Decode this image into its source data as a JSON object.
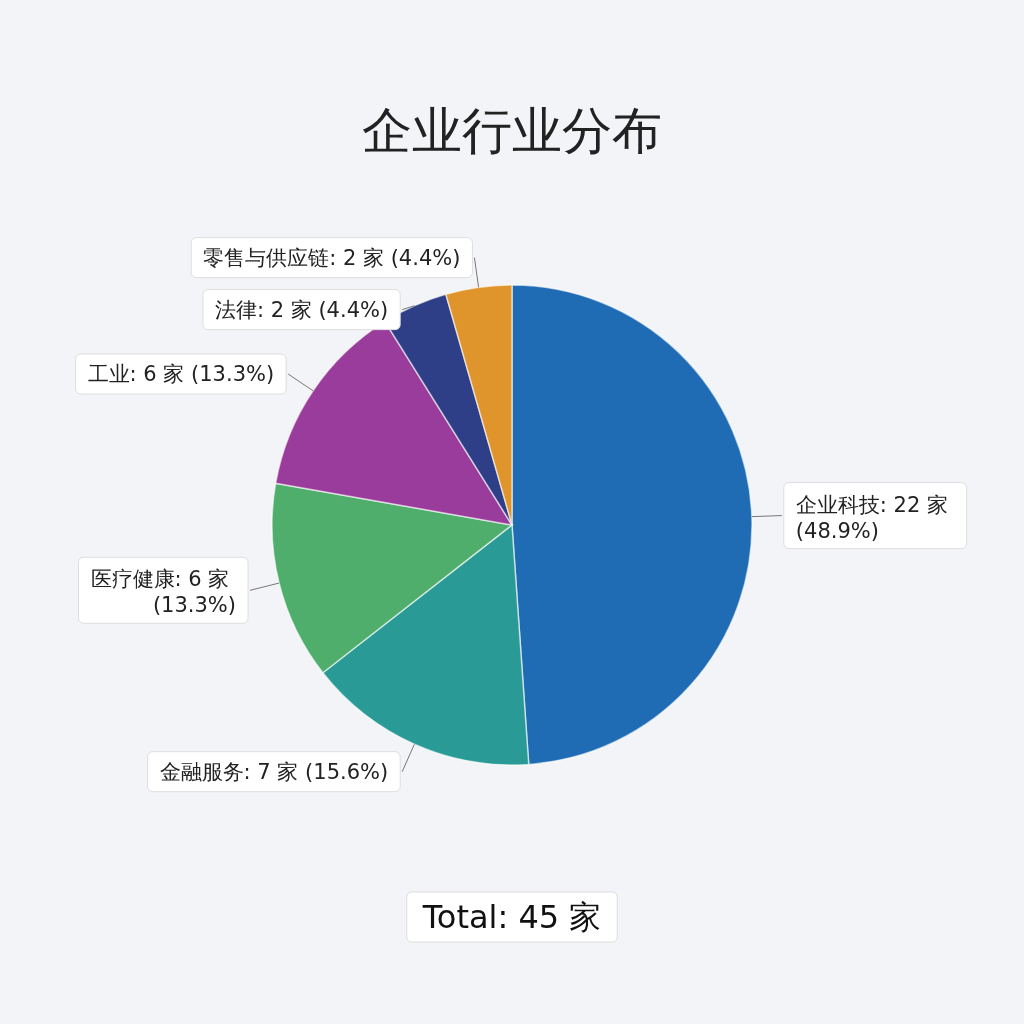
{
  "chart_data": {
    "type": "pie",
    "title": "企业行业分布",
    "categories": [
      "企业科技: 22 家 (48.9%)",
      "金融服务: 7 家 (15.6%)",
      "医疗健康: 6 家 (13.3%)",
      "工业: 6 家 (13.3%)",
      "法律: 2 家 (4.4%)",
      "零售与供应链: 2 家 (4.4%)"
    ],
    "values": [
      22,
      7,
      6,
      6,
      2,
      2
    ],
    "colors": [
      "#1f6cb5",
      "#2a9a96",
      "#4fae6c",
      "#9a3c9c",
      "#2e3f88",
      "#e0942c"
    ],
    "annotations": [
      "Total: 45 家"
    ]
  }
}
